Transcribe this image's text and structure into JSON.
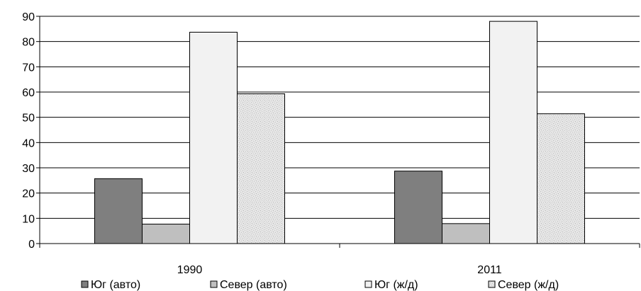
{
  "chart_data": {
    "type": "bar",
    "title": "",
    "xlabel": "",
    "ylabel": "",
    "categories": [
      "1990",
      "2011"
    ],
    "series": [
      {
        "name": "Юг (авто)",
        "values": [
          25.7,
          28.7
        ],
        "color": "#7f7f7f",
        "pattern": "solid"
      },
      {
        "name": "Север (авто)",
        "values": [
          7.7,
          7.9
        ],
        "color": "#bfbfbf",
        "pattern": "solid"
      },
      {
        "name": "Юг (ж/д)",
        "values": [
          83.7,
          88.0
        ],
        "color": "#f2f2f2",
        "pattern": "solid"
      },
      {
        "name": "Север (ж/д)",
        "values": [
          59.3,
          51.4
        ],
        "color": "#d9d9d9",
        "pattern": "speckle"
      }
    ],
    "ylim": [
      0,
      90
    ],
    "yticks": [
      0,
      10,
      20,
      30,
      40,
      50,
      60,
      70,
      80,
      90
    ],
    "grid": true,
    "legend_position": "bottom"
  }
}
